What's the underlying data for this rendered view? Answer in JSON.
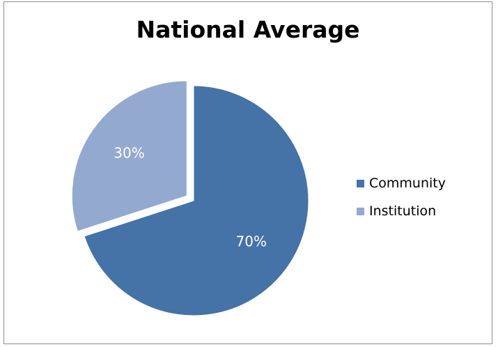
{
  "chart_data": {
    "type": "pie",
    "title": "National Average",
    "categories": [
      "Community",
      "Institution"
    ],
    "values": [
      70,
      30
    ],
    "data_labels": [
      "70%",
      "30%"
    ],
    "colors": [
      "#4572A7",
      "#93A9CF"
    ],
    "exploded": [
      false,
      true
    ],
    "legend_position": "right",
    "label_color": "#ffffff"
  }
}
